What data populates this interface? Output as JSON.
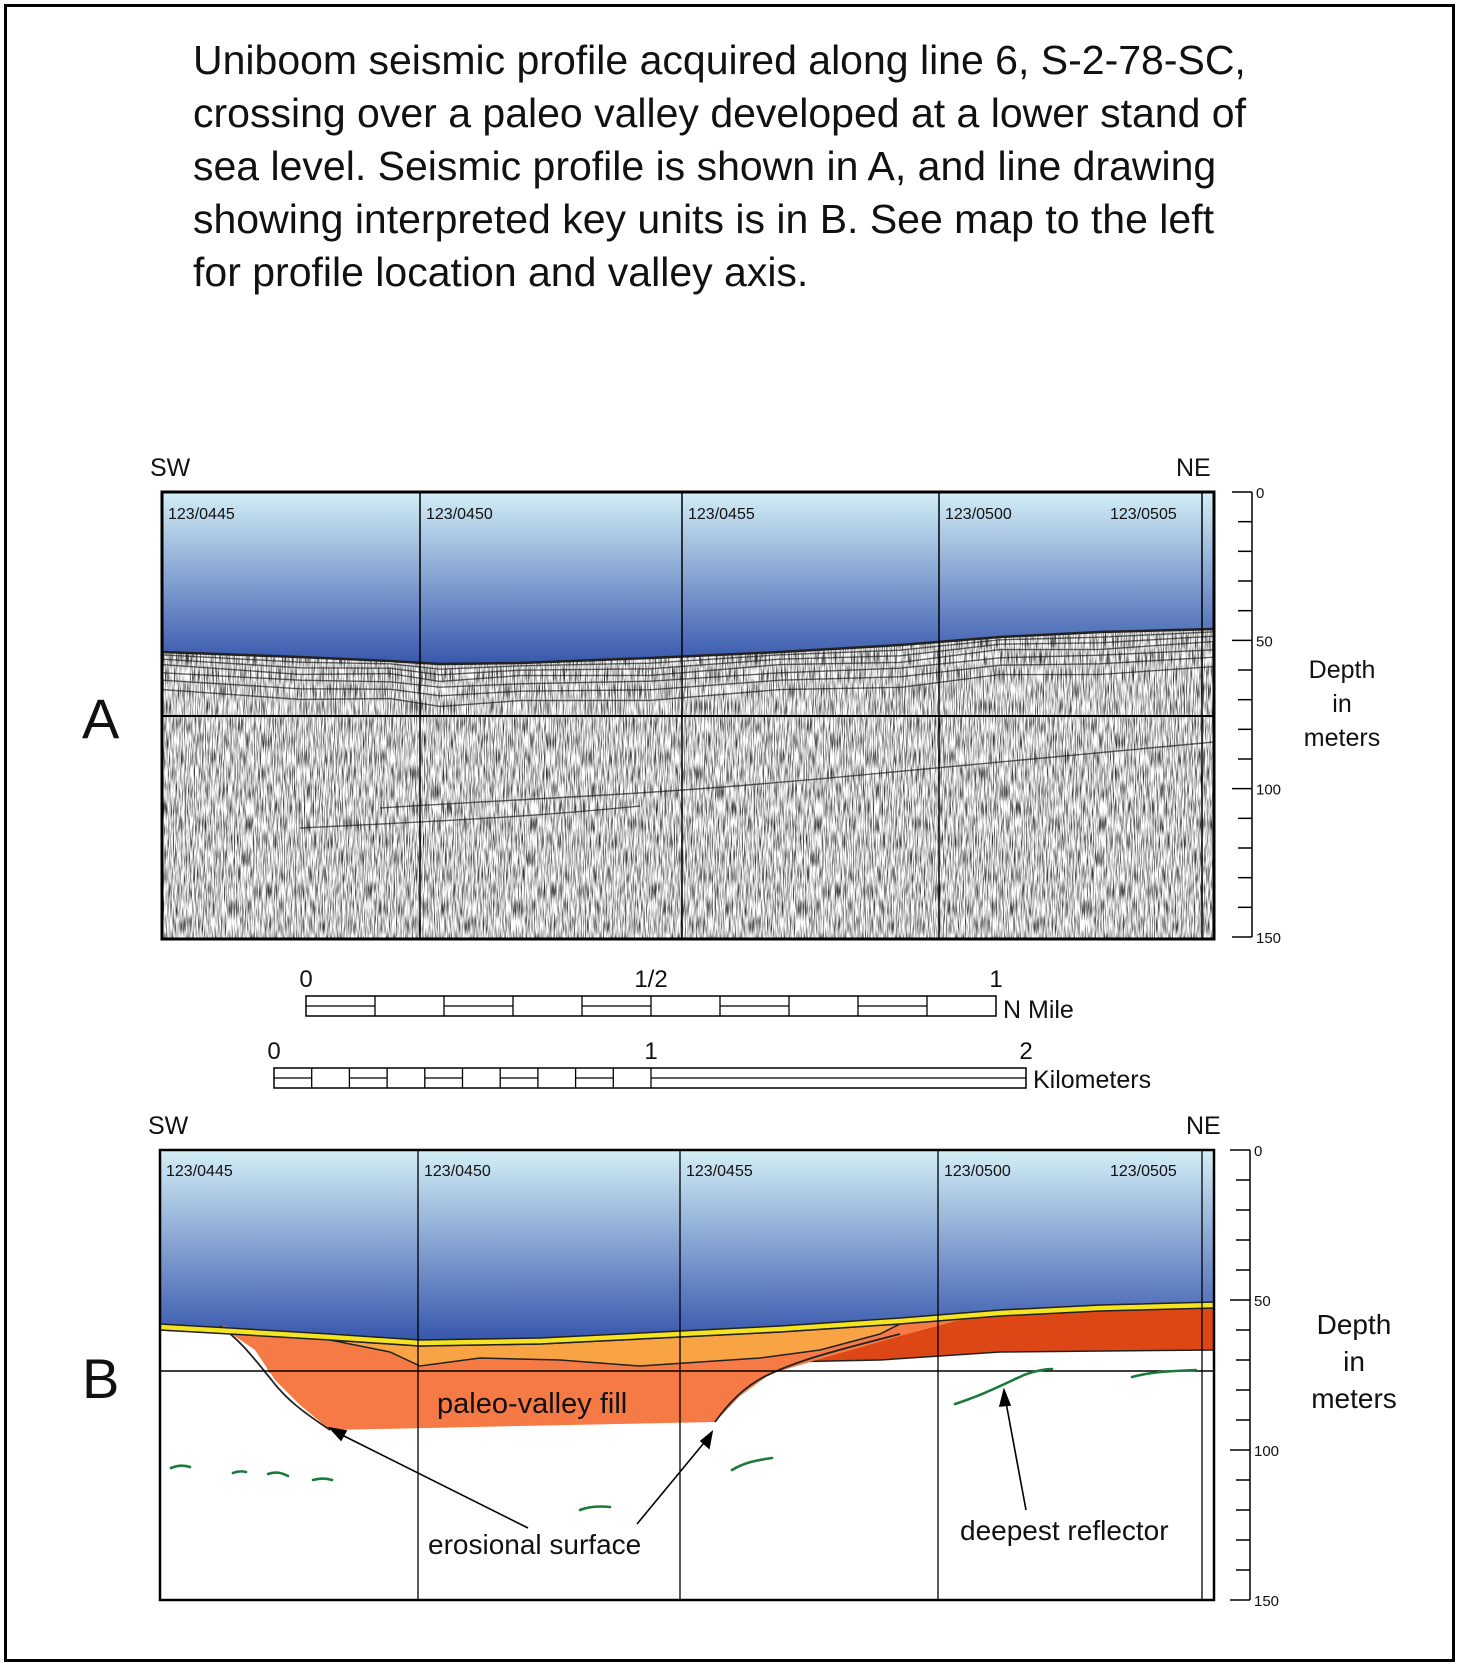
{
  "caption": "Uniboom seismic profile acquired along line 6, S-2-78-SC, crossing over a paleo valley developed at a lower stand of sea level. Seismic profile is shown in A, and line drawing showing interpreted key units is in B. See map to the left for profile location and valley axis.",
  "directions": {
    "left": "SW",
    "right": "NE"
  },
  "time_marks": [
    "123/0445",
    "123/0450",
    "123/0455",
    "123/0500",
    "123/0505"
  ],
  "depth_scale": {
    "label_lines": [
      "Depth",
      "in",
      "meters"
    ],
    "ticks": [
      "0",
      "50",
      "100",
      "150"
    ],
    "min": 0,
    "max": 150
  },
  "panel_a": {
    "letter": "A"
  },
  "panel_b": {
    "letter": "B"
  },
  "scale_nmile": {
    "ticks": [
      "0",
      "1/2",
      "1"
    ],
    "unit": "N Mile"
  },
  "scale_km": {
    "ticks": [
      "0",
      "1",
      "2"
    ],
    "unit": "Kilometers"
  },
  "annotations": {
    "fill": "paleo-valley fill",
    "erosion": "erosional surface",
    "reflector": "deepest reflector"
  },
  "colors": {
    "water_top": "#d3eef6",
    "water_bottom": "#3757ad",
    "veneer": "#f4e421",
    "valley_fill": "#f67a45",
    "upper_fill": "#f8a444",
    "older_unit": "#dc4715",
    "reflector": "#1b7a3a"
  }
}
